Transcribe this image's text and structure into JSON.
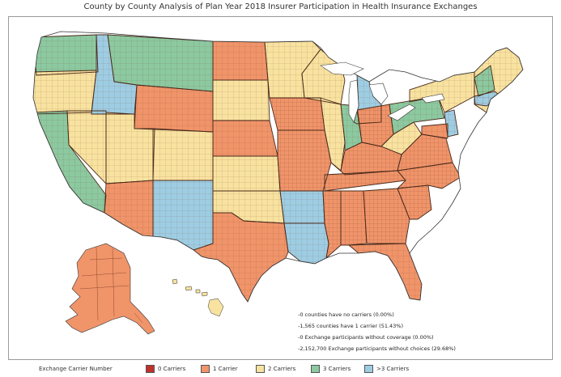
{
  "title": "County by County Analysis of Plan Year 2018 Insurer Participation in Health Insurance Exchanges",
  "colors": {
    "zero": "#c0312b",
    "one": "#f0946a",
    "two": "#f8e2a0",
    "three": "#8cc9a0",
    "more": "#9ecde3",
    "border": "#7a3a20"
  },
  "stats": [
    "-0 counties have no carriers (0.00%)",
    "-1,565 counties have 1 carrier (51.43%)",
    "-0 Exchange participants without coverage (0.00%)",
    "-2,152,700 Exchange participants without choices (29.68%)"
  ],
  "legend": {
    "title": "Exchange Carrier Number",
    "items": [
      {
        "label": "0 Carriers",
        "color": "#c0312b"
      },
      {
        "label": "1 Carrier",
        "color": "#f0946a"
      },
      {
        "label": "2 Carriers",
        "color": "#f8e2a0"
      },
      {
        "label": "3 Carriers",
        "color": "#8cc9a0"
      },
      {
        "label": ">3 Carriers",
        "color": "#9ecde3"
      }
    ]
  }
}
